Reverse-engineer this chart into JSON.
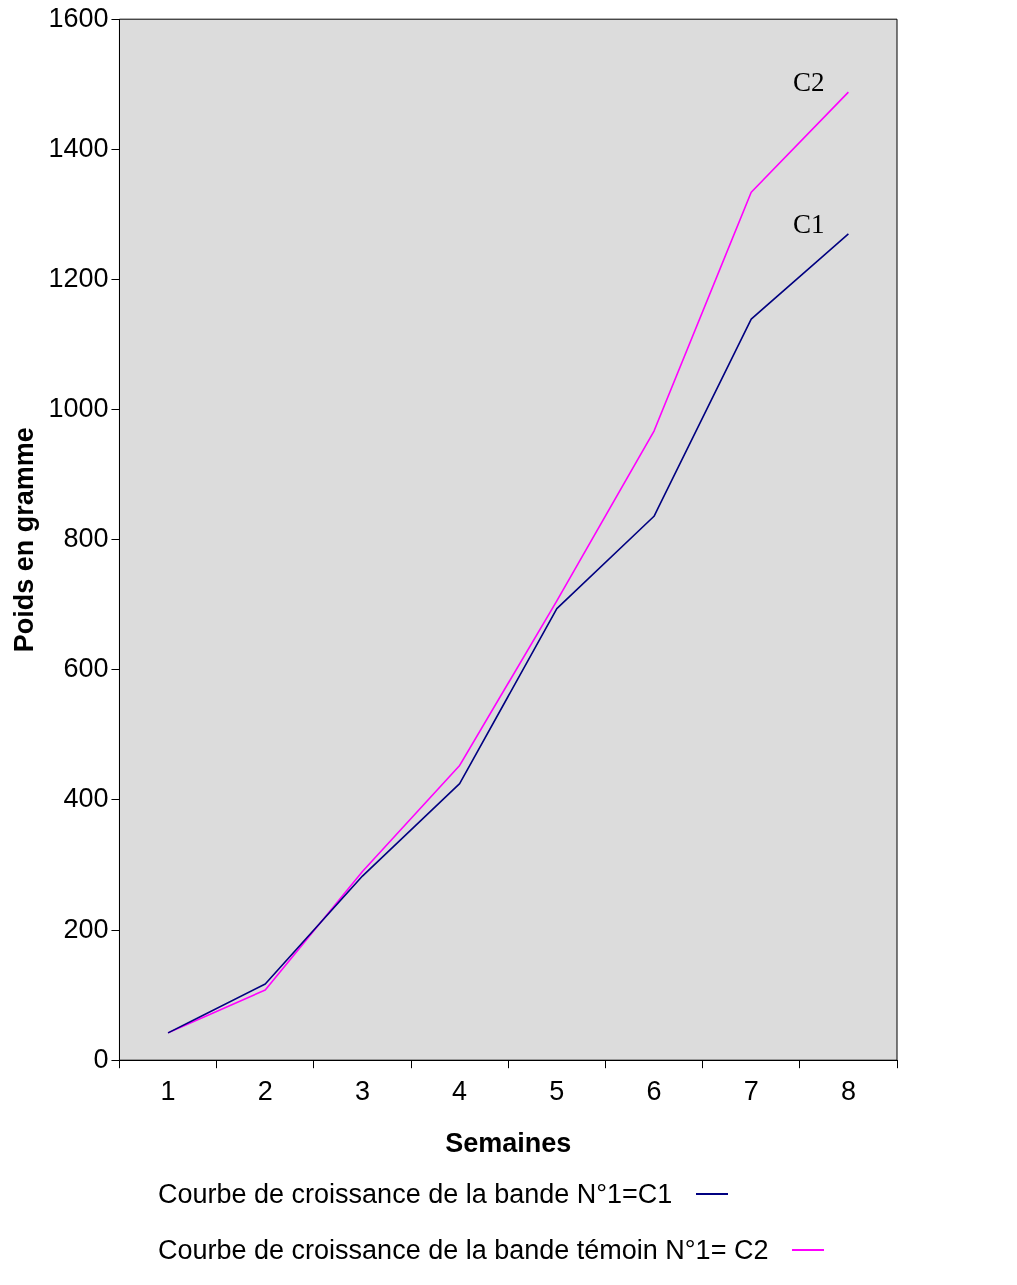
{
  "chart_data": {
    "type": "line",
    "xlabel": "Semaines",
    "ylabel": "Poids en gramme",
    "categories": [
      "1",
      "2",
      "3",
      "4",
      "5",
      "6",
      "7",
      "8"
    ],
    "series": [
      {
        "name": "Courbe de croissance de la bande N°1=C1",
        "color": "#000080",
        "values": [
          42,
          117,
          283,
          425,
          694,
          836,
          1139,
          1270
        ]
      },
      {
        "name": "Courbe de croissance de la bande témoin N°1= C2",
        "color": "#ff00ff",
        "values": [
          42,
          108,
          290,
          453,
          706,
          967,
          1334,
          1488
        ]
      }
    ],
    "ylim": [
      0,
      1600
    ],
    "yticks": [
      0,
      200,
      400,
      600,
      800,
      1000,
      1200,
      1400,
      1600
    ],
    "annotations": [
      "C1",
      "C2"
    ],
    "grid": false,
    "legend": "bottom",
    "marker": "none",
    "line_style": "solid"
  }
}
